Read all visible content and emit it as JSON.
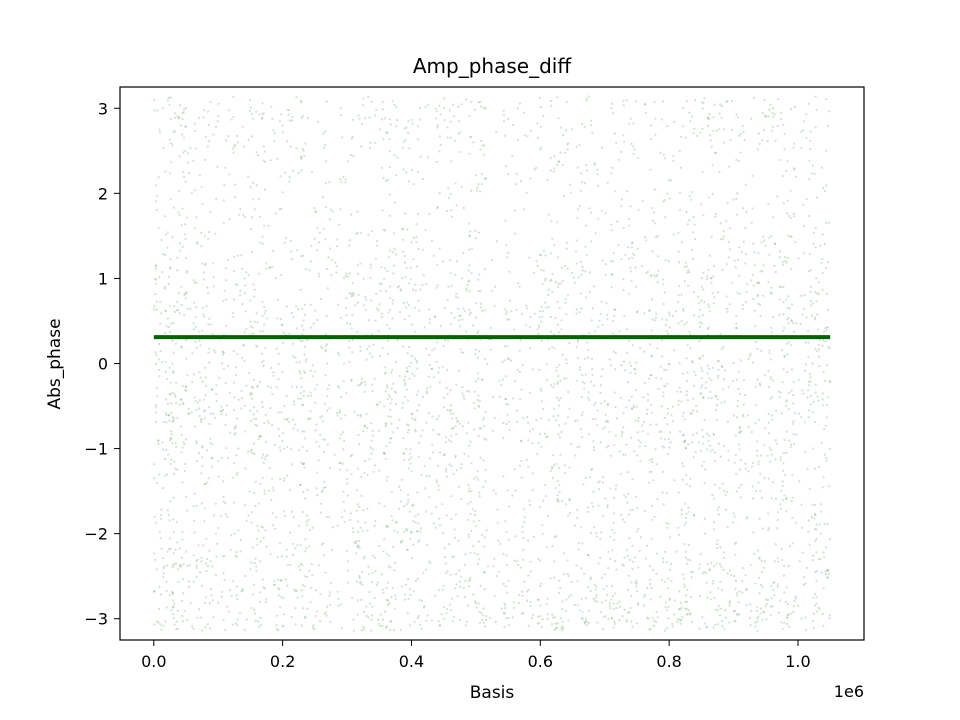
{
  "chart_data": {
    "type": "scatter",
    "title": "Amp_phase_diff",
    "xlabel": "Basis",
    "ylabel": "Abs_phase",
    "x_offset_label": "1e6",
    "xlim": [
      -0.0525,
      1.1025
    ],
    "ylim": [
      -3.25,
      3.25
    ],
    "x_ticks": [
      0.0,
      0.2,
      0.4,
      0.6,
      0.8,
      1.0
    ],
    "x_tick_labels": [
      "0.0",
      "0.2",
      "0.4",
      "0.6",
      "0.8",
      "1.0"
    ],
    "y_ticks": [
      -3,
      -2,
      -1,
      0,
      1,
      2,
      3
    ],
    "y_tick_labels": [
      "−3",
      "−2",
      "−1",
      "0",
      "1",
      "2",
      "3"
    ],
    "grid": false,
    "series": [
      {
        "kind": "scatter",
        "color": "#2e7d2e",
        "x_range": [
          0.0,
          1.05
        ],
        "y_range": [
          -3.14159,
          3.14159
        ],
        "density_profile_y": [
          {
            "y": -3.0,
            "density": 0.95
          },
          {
            "y": -2.0,
            "density": 0.55
          },
          {
            "y": -1.5,
            "density": 0.45
          },
          {
            "y": -0.5,
            "density": 0.85
          },
          {
            "y": 0.0,
            "density": 0.6
          },
          {
            "y": 0.5,
            "density": 0.7
          },
          {
            "y": 1.0,
            "density": 0.55
          },
          {
            "y": 1.5,
            "density": 0.4
          },
          {
            "y": 2.0,
            "density": 0.25
          },
          {
            "y": 3.0,
            "density": 0.5
          }
        ]
      },
      {
        "kind": "line",
        "color": "#006400",
        "x": [
          0.0,
          1.05
        ],
        "y": [
          0.31,
          0.31
        ]
      }
    ]
  }
}
